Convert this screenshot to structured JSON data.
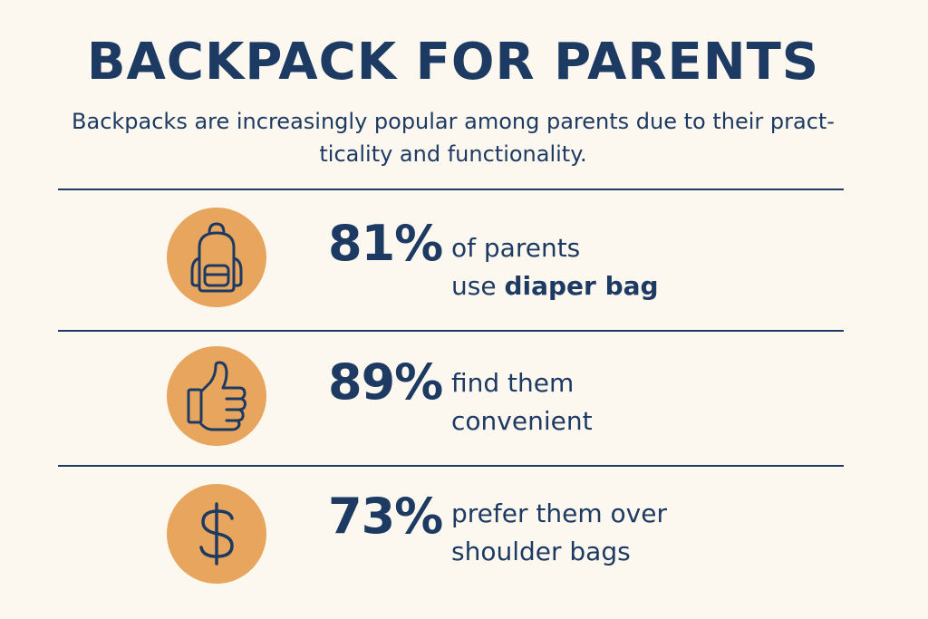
{
  "header": {
    "title": "BACKPACK FOR PARENTS",
    "subtitle_line1": "Backpacks are increasingly popular among parents due to their pract-",
    "subtitle_line2": "ticality and functionality."
  },
  "colors": {
    "background": "#fdf8ef",
    "text": "#1d3a63",
    "icon_circle": "#e8a55d"
  },
  "stats": [
    {
      "icon": "backpack-icon",
      "percent": "81%",
      "line1": "of parents",
      "line2_prefix": "use ",
      "line2_emphasis": "diaper bag"
    },
    {
      "icon": "thumbs-up-icon",
      "percent": "89%",
      "line1": "find them",
      "line2": "convenient"
    },
    {
      "icon": "dollar-icon",
      "percent": "73%",
      "line1": "prefer them over",
      "line2": "shoulder bags"
    }
  ]
}
